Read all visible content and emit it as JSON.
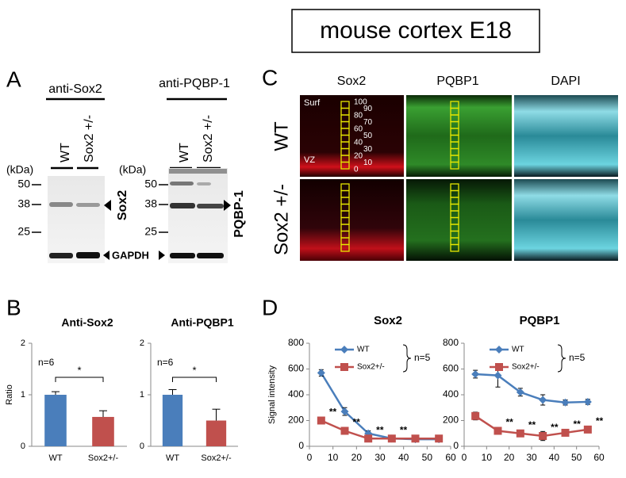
{
  "title": "mouse cortex E18",
  "panel_labels": [
    "A",
    "B",
    "C",
    "D"
  ],
  "blot": {
    "antibodies": [
      "anti-Sox2",
      "anti-PQBP-1"
    ],
    "lanes": [
      "WT",
      "Sox2 +/-"
    ],
    "unit": "(kDa)",
    "markers": [
      50,
      38,
      25
    ],
    "targets": [
      "Sox2",
      "PQBP-1"
    ],
    "loading": "GAPDH"
  },
  "imaging": {
    "stains": [
      "Sox2",
      "PQBP1",
      "DAPI"
    ],
    "genotypes": [
      "WT",
      "Sox2 +/-"
    ],
    "top": "Surf",
    "bottom": "VZ",
    "scale": [
      100,
      90,
      80,
      70,
      60,
      50,
      40,
      30,
      20,
      10,
      0
    ]
  },
  "chart_data": [
    {
      "type": "bar",
      "title": "Anti-Sox2",
      "ylabel": "Ratio",
      "categories": [
        "WT",
        "Sox2+/-"
      ],
      "values": [
        1.0,
        0.57
      ],
      "errors": [
        0.06,
        0.12
      ],
      "colors": [
        "#4a7ebb",
        "#c0504d"
      ],
      "ylim": [
        0,
        2
      ],
      "yticks": [
        0,
        1,
        2
      ],
      "note": "n=6",
      "significance": "*"
    },
    {
      "type": "bar",
      "title": "Anti-PQBP1",
      "categories": [
        "WT",
        "Sox2+/-"
      ],
      "values": [
        1.0,
        0.5
      ],
      "errors": [
        0.1,
        0.22
      ],
      "colors": [
        "#4a7ebb",
        "#c0504d"
      ],
      "ylim": [
        0,
        2
      ],
      "yticks": [
        0,
        1,
        2
      ],
      "note": "n=6",
      "significance": "*"
    },
    {
      "type": "line",
      "title": "Sox2",
      "ylabel": "Signal intensity",
      "x": [
        5,
        15,
        25,
        35,
        45,
        55
      ],
      "series": [
        {
          "name": "WT",
          "color": "#4a7ebb",
          "marker": "diamond",
          "values": [
            570,
            270,
            100,
            60,
            55,
            55
          ],
          "errors": [
            25,
            30,
            20,
            10,
            8,
            8
          ]
        },
        {
          "name": "Sox2+/-",
          "color": "#c0504d",
          "marker": "square",
          "values": [
            200,
            120,
            60,
            60,
            60,
            60
          ],
          "errors": [
            20,
            15,
            10,
            10,
            8,
            8
          ],
          "significance": [
            "**",
            "**",
            "**",
            "**",
            null,
            null
          ]
        }
      ],
      "xlim": [
        0,
        60
      ],
      "xticks": [
        0,
        10,
        20,
        30,
        40,
        50,
        60
      ],
      "ylim": [
        0,
        800
      ],
      "yticks": [
        0,
        200,
        400,
        600,
        800
      ],
      "note": "n=5"
    },
    {
      "type": "line",
      "title": "PQBP1",
      "x": [
        5,
        15,
        25,
        35,
        45,
        55
      ],
      "series": [
        {
          "name": "WT",
          "color": "#4a7ebb",
          "marker": "diamond",
          "values": [
            560,
            550,
            420,
            360,
            340,
            345
          ],
          "errors": [
            30,
            90,
            30,
            40,
            20,
            20
          ]
        },
        {
          "name": "Sox2+/-",
          "color": "#c0504d",
          "marker": "square",
          "values": [
            235,
            120,
            100,
            80,
            105,
            130
          ],
          "errors": [
            30,
            20,
            15,
            35,
            15,
            20
          ],
          "significance": [
            null,
            "**",
            "**",
            "**",
            "**",
            "**"
          ]
        }
      ],
      "xlim": [
        0,
        60
      ],
      "xticks": [
        0,
        10,
        20,
        30,
        40,
        50,
        60
      ],
      "ylim": [
        0,
        800
      ],
      "yticks": [
        0,
        200,
        400,
        600,
        800
      ],
      "note": "n=5"
    }
  ]
}
